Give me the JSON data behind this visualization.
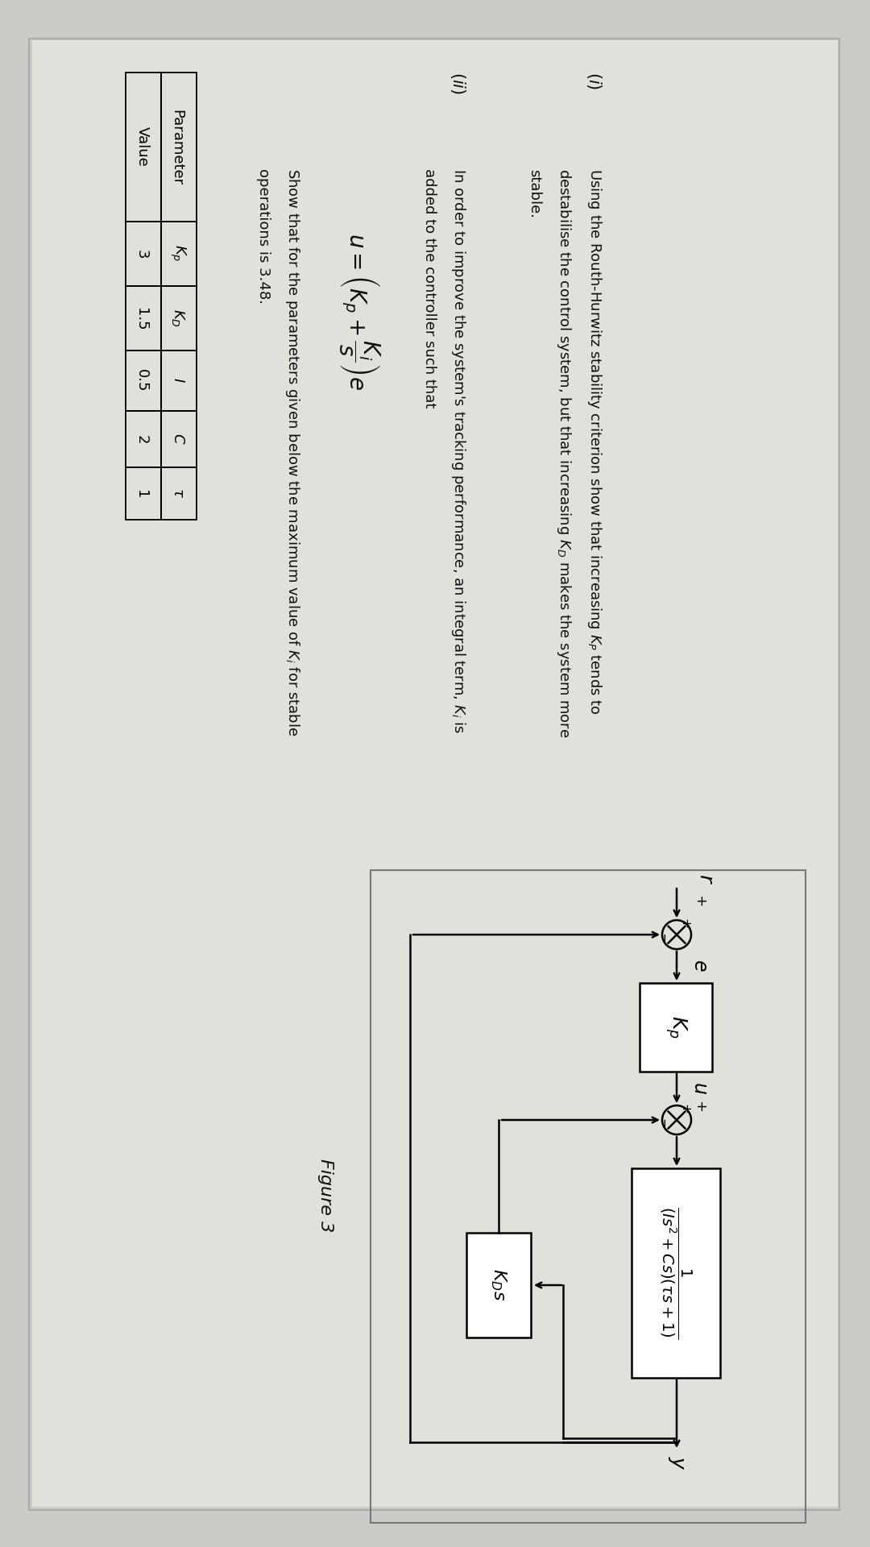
{
  "bg_color": "#cccbc8",
  "paper_color": "#e2e0db",
  "text_color": "#111111",
  "figure_title": "Figure 3",
  "part_i_label": "(i)",
  "part_ii_label": "(ii)",
  "table_headers": [
    "Parameter",
    "Kp",
    "KD",
    "I",
    "C",
    "tau"
  ],
  "table_values": [
    "Value",
    "3",
    "1.5",
    "0.5",
    "2",
    "1"
  ],
  "diag_bg": "#dddbd6",
  "rotation_deg": -90
}
